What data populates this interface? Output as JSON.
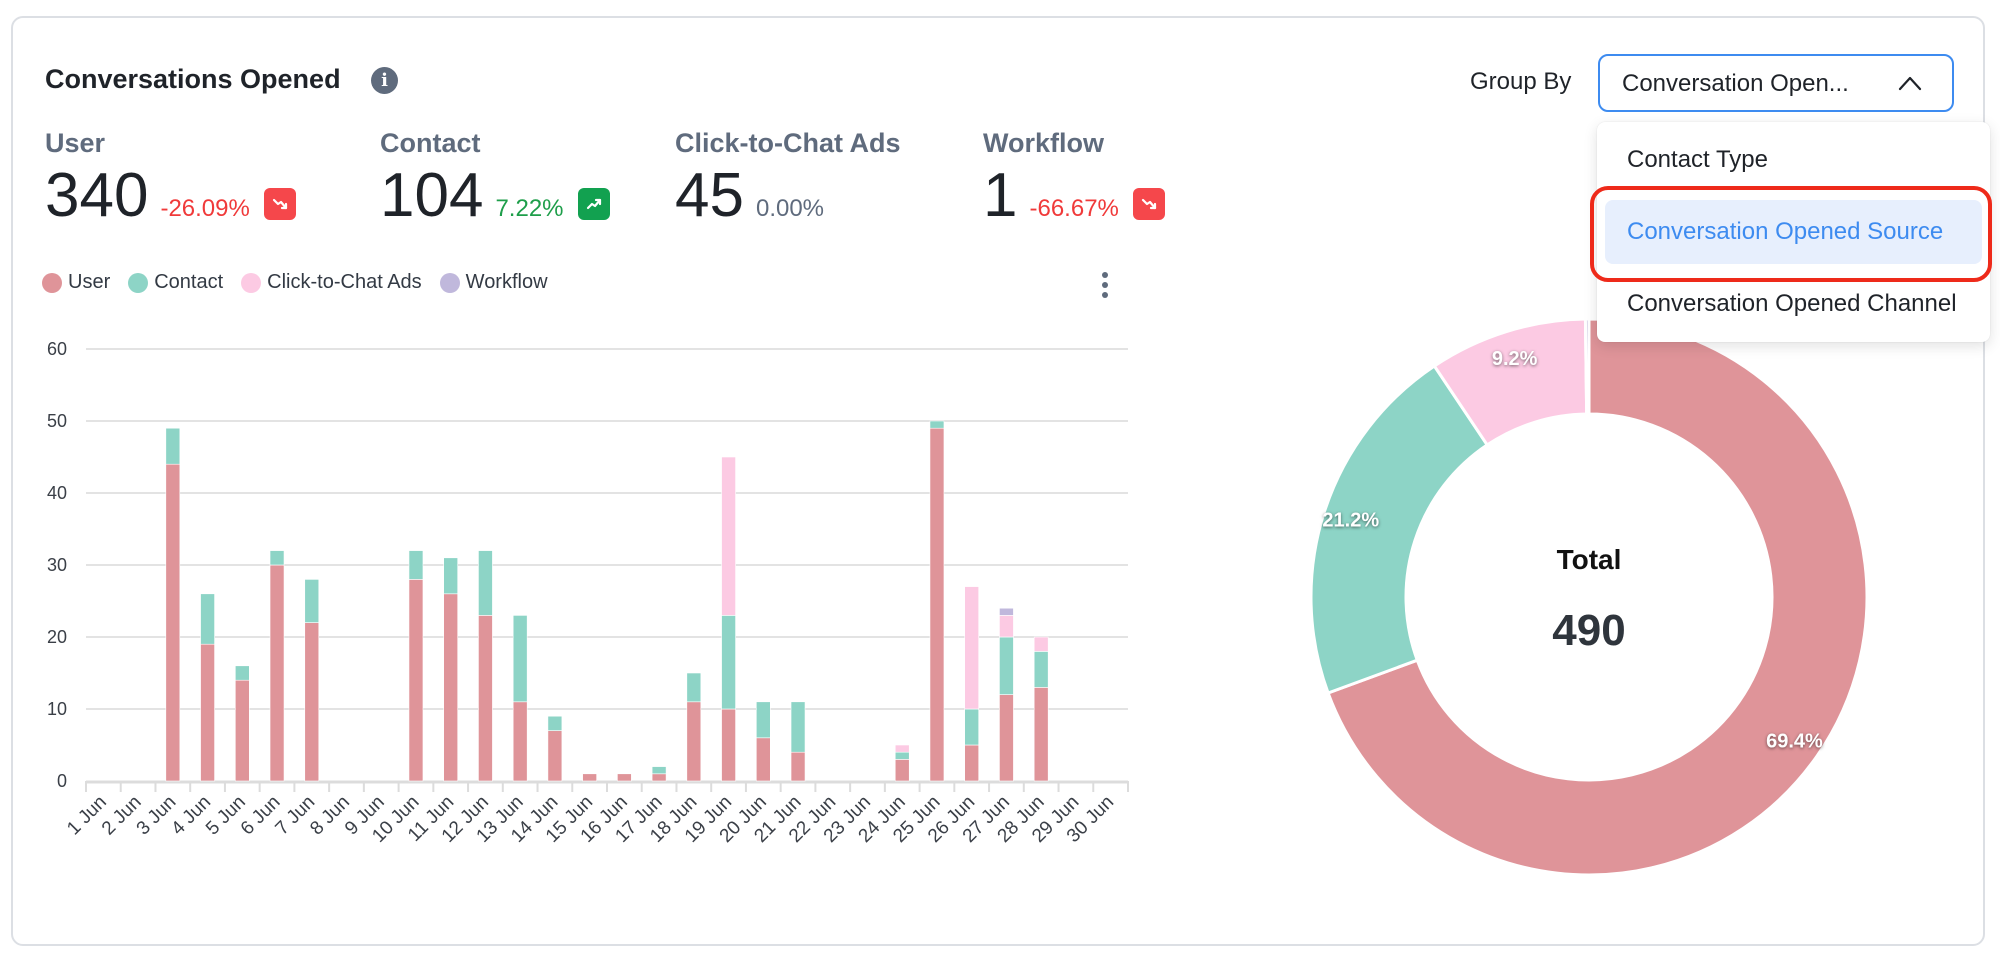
{
  "widget": {
    "title": "Conversations Opened",
    "info_icon": "info-icon"
  },
  "stats": [
    {
      "label": "User",
      "value": "340",
      "change": "-26.09%",
      "trend": "down",
      "trend_icon": "trending-down-icon"
    },
    {
      "label": "Contact",
      "value": "104",
      "change": "7.22%",
      "trend": "up",
      "trend_icon": "trending-up-icon"
    },
    {
      "label": "Click-to-Chat Ads",
      "value": "45",
      "change": "0.00%",
      "trend": "neutral",
      "trend_icon": ""
    },
    {
      "label": "Workflow",
      "value": "1",
      "change": "-66.67%",
      "trend": "down",
      "trend_icon": "trending-down-icon"
    }
  ],
  "group_by": {
    "label": "Group By",
    "selected_display": "Conversation Open...",
    "expanded": true,
    "options": [
      "Contact Type",
      "Conversation Opened Source",
      "Conversation Opened Channel"
    ],
    "highlighted_index": 1
  },
  "colors": {
    "User": "#df9499",
    "Contact": "#8dd4c6",
    "Click-to-Chat Ads": "#fccae3",
    "Workflow": "#c0b8dc",
    "accent": "#3d8bf0",
    "negative": "#f03a3a",
    "positive": "#1e9e4a",
    "annotation_red": "#ee2a1a"
  },
  "chart_data": [
    {
      "type": "bar",
      "stacked": true,
      "title": "",
      "xlabel": "",
      "ylabel": "",
      "ylim": [
        0,
        60
      ],
      "yticks": [
        0,
        10,
        20,
        30,
        40,
        50,
        60
      ],
      "grid": true,
      "legend_position": "top-left",
      "categories": [
        "1 Jun",
        "2 Jun",
        "3 Jun",
        "4 Jun",
        "5 Jun",
        "6 Jun",
        "7 Jun",
        "8 Jun",
        "9 Jun",
        "10 Jun",
        "11 Jun",
        "12 Jun",
        "13 Jun",
        "14 Jun",
        "15 Jun",
        "16 Jun",
        "17 Jun",
        "18 Jun",
        "19 Jun",
        "20 Jun",
        "21 Jun",
        "22 Jun",
        "23 Jun",
        "24 Jun",
        "25 Jun",
        "26 Jun",
        "27 Jun",
        "28 Jun",
        "29 Jun",
        "30 Jun"
      ],
      "series": [
        {
          "name": "User",
          "values": [
            0,
            0,
            44,
            19,
            14,
            30,
            22,
            0,
            0,
            28,
            26,
            23,
            11,
            7,
            1,
            1,
            1,
            11,
            10,
            6,
            4,
            0,
            0,
            3,
            49,
            5,
            12,
            13,
            0,
            0
          ]
        },
        {
          "name": "Contact",
          "values": [
            0,
            0,
            5,
            7,
            2,
            2,
            6,
            0,
            0,
            4,
            5,
            9,
            12,
            2,
            0,
            0,
            1,
            4,
            13,
            5,
            7,
            0,
            0,
            1,
            1,
            5,
            8,
            5,
            0,
            0
          ]
        },
        {
          "name": "Click-to-Chat Ads",
          "values": [
            0,
            0,
            0,
            0,
            0,
            0,
            0,
            0,
            0,
            0,
            0,
            0,
            0,
            0,
            0,
            0,
            0,
            0,
            22,
            0,
            0,
            0,
            0,
            1,
            0,
            17,
            3,
            2,
            0,
            0
          ]
        },
        {
          "name": "Workflow",
          "values": [
            0,
            0,
            0,
            0,
            0,
            0,
            0,
            0,
            0,
            0,
            0,
            0,
            0,
            0,
            0,
            0,
            0,
            0,
            0,
            0,
            0,
            0,
            0,
            0,
            0,
            0,
            1,
            0,
            0,
            0
          ]
        }
      ]
    },
    {
      "type": "pie",
      "donut": true,
      "center_label": "Total",
      "center_value": "490",
      "slices": [
        {
          "name": "User",
          "value": 340,
          "label": "69.4%"
        },
        {
          "name": "Contact",
          "value": 104,
          "label": "21.2%"
        },
        {
          "name": "Click-to-Chat Ads",
          "value": 45,
          "label": "9.2%"
        },
        {
          "name": "Workflow",
          "value": 1,
          "label": ""
        }
      ]
    }
  ]
}
